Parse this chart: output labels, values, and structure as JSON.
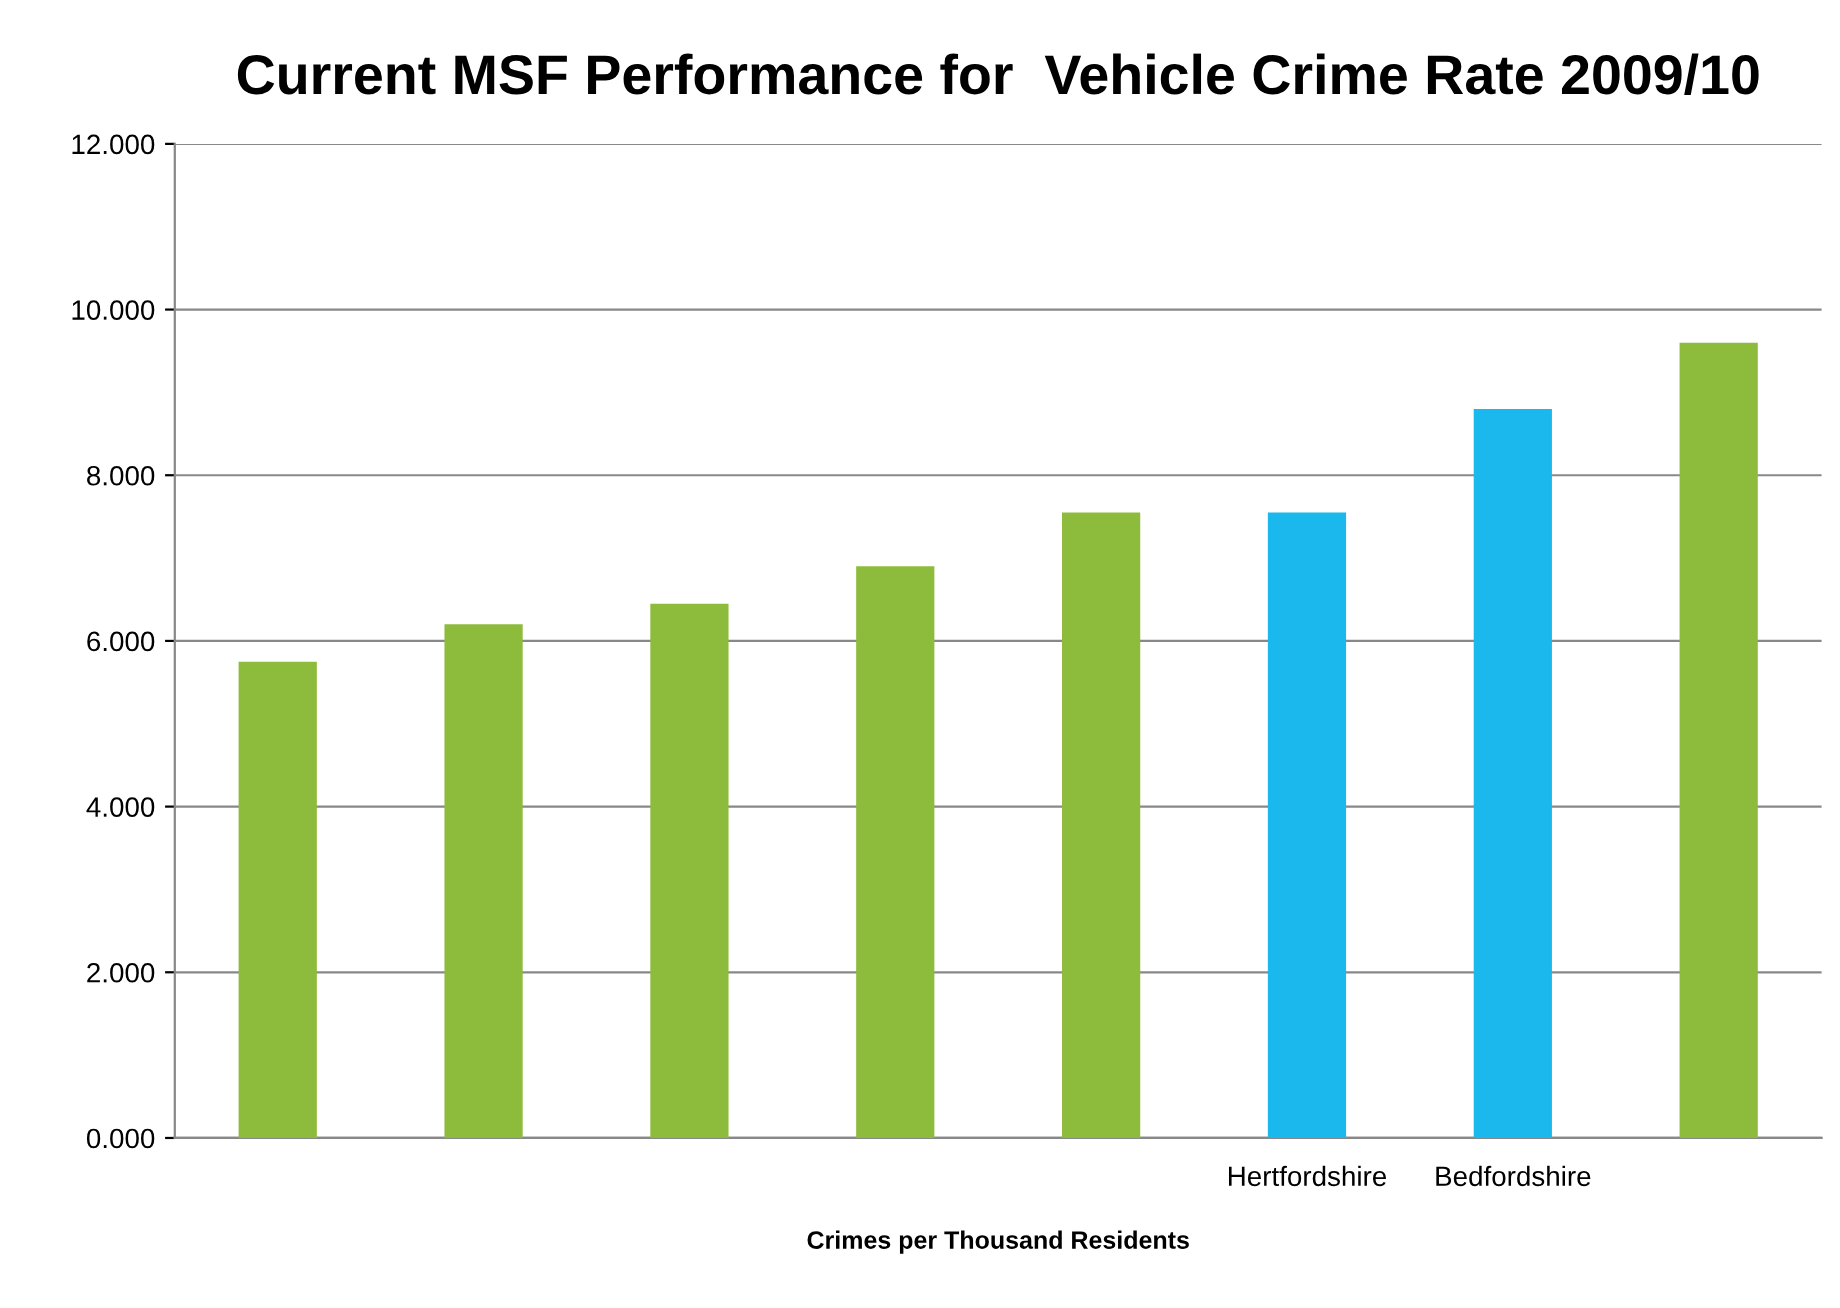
{
  "chart_data": {
    "type": "bar",
    "title": "Current MSF Performance for  Vehicle Crime Rate 2009/10",
    "xlabel": "Crimes per Thousand Residents",
    "categories": [
      null,
      null,
      null,
      null,
      null,
      "Hertfordshire",
      "Bedfordshire",
      null
    ],
    "values": [
      5.75,
      6.2,
      6.45,
      6.9,
      7.55,
      7.55,
      8.8,
      9.6
    ],
    "colors": [
      "#8dbb3c",
      "#8dbb3c",
      "#8dbb3c",
      "#8dbb3c",
      "#8dbb3c",
      "#1ab8ec",
      "#1ab8ec",
      "#8dbb3c"
    ],
    "ylim": [
      0,
      12
    ],
    "yticks": [
      {
        "value": 0,
        "label": "0.000"
      },
      {
        "value": 2,
        "label": "2.000"
      },
      {
        "value": 4,
        "label": "4.000"
      },
      {
        "value": 6,
        "label": "6.000"
      },
      {
        "value": 8,
        "label": "8.000"
      },
      {
        "value": 10,
        "label": "10.000"
      },
      {
        "value": 12,
        "label": "12.000"
      }
    ],
    "grid": "y",
    "legend": false
  }
}
